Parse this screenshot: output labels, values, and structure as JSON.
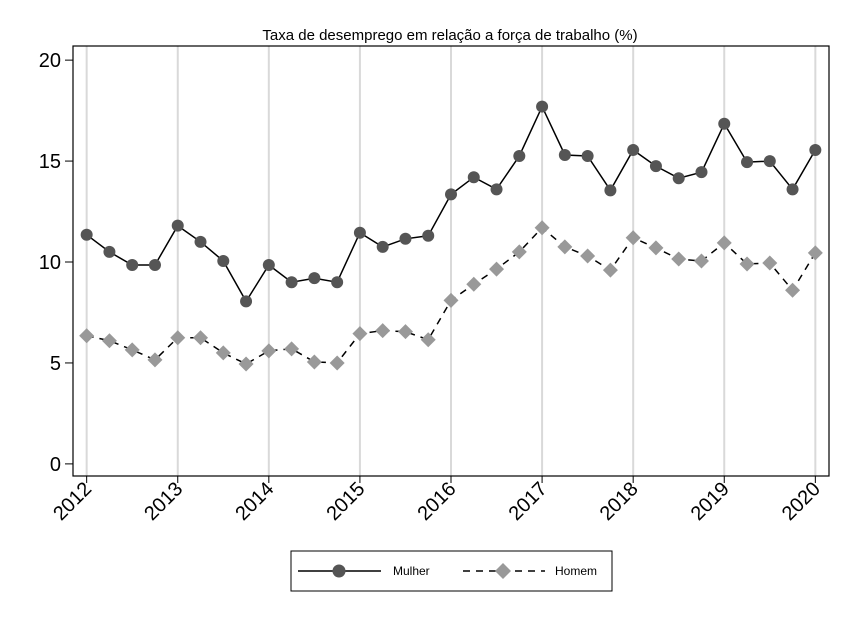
{
  "chart_data": {
    "type": "line",
    "title": "Taxa de desemprego em relação a força de trabalho (%)",
    "xlabel": "",
    "ylabel": "",
    "x": [
      2012,
      2012.25,
      2012.5,
      2012.75,
      2013,
      2013.25,
      2013.5,
      2013.75,
      2014,
      2014.25,
      2014.5,
      2014.75,
      2015,
      2015.25,
      2015.5,
      2015.75,
      2016,
      2016.25,
      2016.5,
      2016.75,
      2017,
      2017.25,
      2017.5,
      2017.75,
      2018,
      2018.25,
      2018.5,
      2018.75,
      2019,
      2019.25,
      2019.5,
      2019.75,
      2020
    ],
    "xticks": [
      "2012",
      "2013",
      "2014",
      "2015",
      "2016",
      "2017",
      "2018",
      "2019",
      "2020"
    ],
    "xtick_values": [
      2012,
      2013,
      2014,
      2015,
      2016,
      2017,
      2018,
      2019,
      2020
    ],
    "xlim": [
      2011.85,
      2020.15
    ],
    "yticks": [
      "0",
      "5",
      "10",
      "15",
      "20"
    ],
    "ytick_values": [
      0,
      5,
      10,
      15,
      20
    ],
    "ylim": [
      -0.6,
      20.7
    ],
    "grid": "vertical",
    "legend_position": "bottom",
    "series": [
      {
        "name": "Mulher",
        "color": "#000000",
        "marker_color": "#555555",
        "marker": "circle",
        "linestyle": "solid",
        "values": [
          11.35,
          10.5,
          9.85,
          9.85,
          11.8,
          11.0,
          10.05,
          8.05,
          9.85,
          9.0,
          9.2,
          9.0,
          11.45,
          10.75,
          11.15,
          11.3,
          13.35,
          14.2,
          13.6,
          15.25,
          17.7,
          15.3,
          15.25,
          13.55,
          15.55,
          14.75,
          14.15,
          14.45,
          16.85,
          14.95,
          15.0,
          13.6,
          15.55
        ]
      },
      {
        "name": "Homem",
        "color": "#000000",
        "marker_color": "#999999",
        "marker": "diamond",
        "linestyle": "dashed",
        "values": [
          6.35,
          6.1,
          5.65,
          5.15,
          6.25,
          6.25,
          5.5,
          4.95,
          5.6,
          5.7,
          5.05,
          5.0,
          6.45,
          6.6,
          6.55,
          6.15,
          8.1,
          8.9,
          9.65,
          10.5,
          11.7,
          10.75,
          10.3,
          9.6,
          11.2,
          10.7,
          10.15,
          10.05,
          10.95,
          9.9,
          9.95,
          8.6,
          10.45
        ]
      }
    ]
  }
}
